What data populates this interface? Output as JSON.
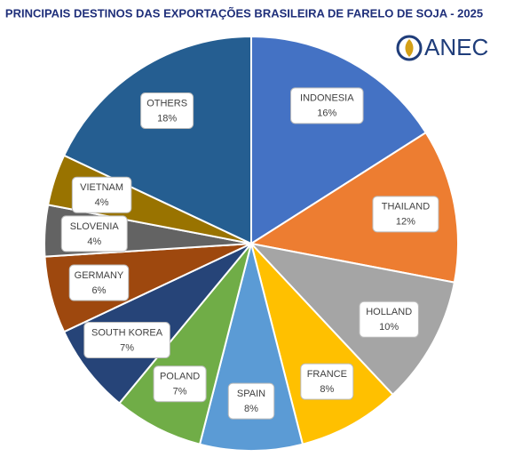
{
  "chart_data": {
    "type": "pie",
    "title": "PRINCIPAIS DESTINOS DAS EXPORTAÇÕES BRASILEIRA DE FARELO DE SOJA - 2025",
    "logo": "ANEC",
    "categories": [
      "INDONESIA",
      "THAILAND",
      "HOLLAND",
      "FRANCE",
      "SPAIN",
      "POLAND",
      "SOUTH KOREA",
      "GERMANY",
      "SLOVENIA",
      "VIETNAM",
      "OTHERS"
    ],
    "values": [
      16,
      12,
      10,
      8,
      8,
      7,
      7,
      6,
      4,
      4,
      18
    ],
    "value_labels": [
      "16%",
      "12%",
      "10%",
      "8%",
      "8%",
      "7%",
      "7%",
      "6%",
      "4%",
      "4%",
      "18%"
    ],
    "colors": [
      "#4472c4",
      "#ed7d31",
      "#a5a5a5",
      "#ffc000",
      "#5b9bd5",
      "#70ad47",
      "#264478",
      "#9e480e",
      "#636363",
      "#997300",
      "#255e91"
    ]
  }
}
